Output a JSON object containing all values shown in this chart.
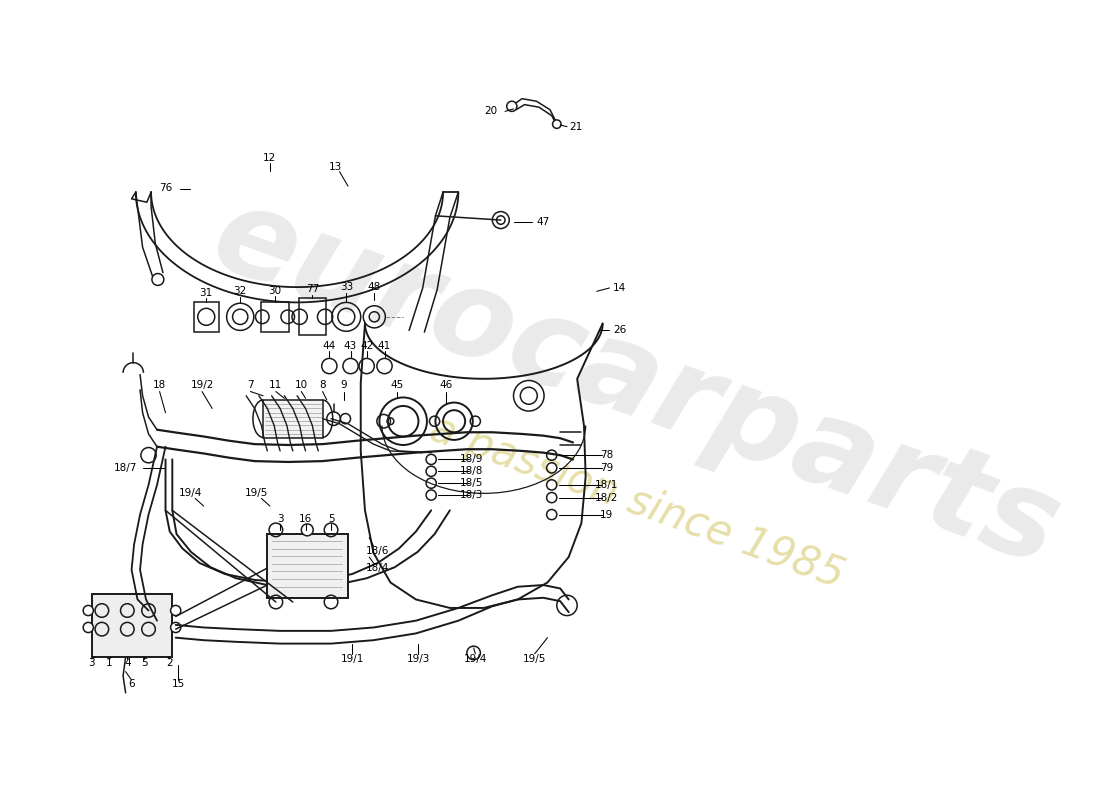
{
  "bg_color": "#ffffff",
  "lc": "#1a1a1a",
  "lw": 1.1,
  "watermark_text": "eurocarparts",
  "watermark_sub": "a passion since 1985"
}
